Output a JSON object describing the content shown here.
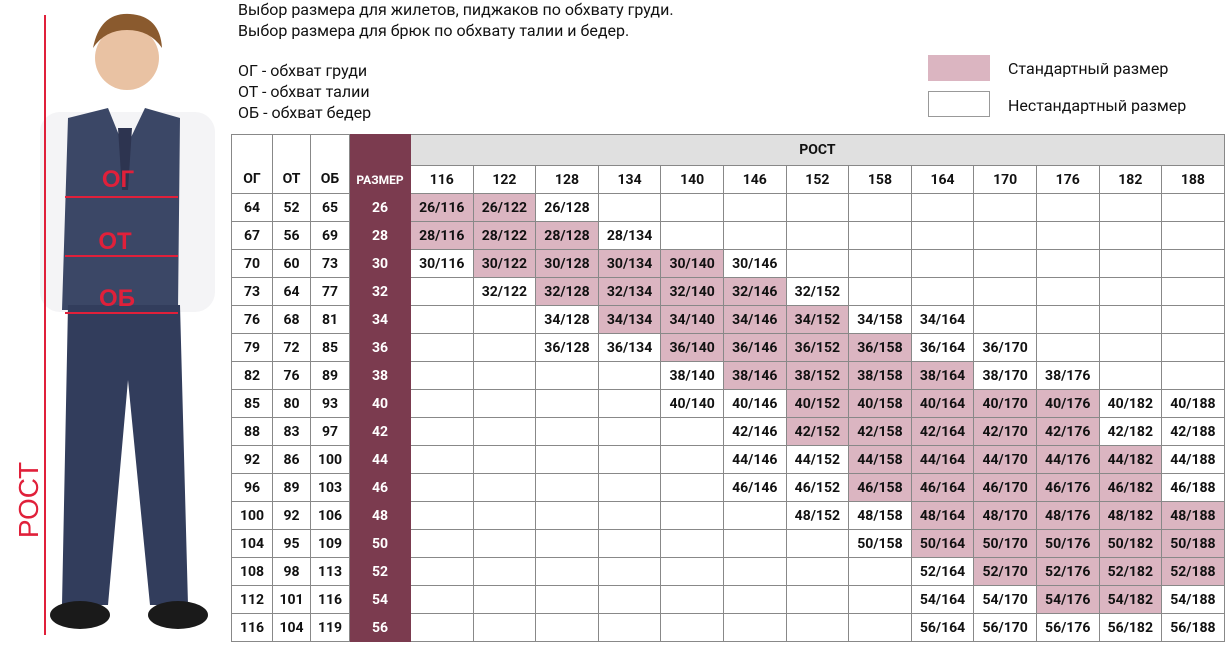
{
  "header": {
    "lines": [
      "Выбор размера для жилетов, пиджаков по обхвату груди.",
      "Выбор размера для брюк по обхвату талии и бедер."
    ],
    "abbreviations": [
      "ОГ - обхват груди",
      "ОТ - обхват талии",
      "ОБ - обхват бедер"
    ]
  },
  "legend": {
    "standard": "Стандартный размер",
    "nonstandard": "Нестандартный размер"
  },
  "figure": {
    "chest": "ОГ",
    "waist": "ОТ",
    "hips": "ОБ",
    "height": "РОСТ"
  },
  "table": {
    "height_title": "РОСТ",
    "columns": [
      "ОГ",
      "ОТ",
      "ОБ",
      "РАЗМЕР"
    ],
    "heights": [
      "116",
      "122",
      "128",
      "134",
      "140",
      "146",
      "152",
      "158",
      "164",
      "170",
      "176",
      "182",
      "188"
    ],
    "rows": [
      {
        "og": "64",
        "ot": "52",
        "ob": "65",
        "size": "26",
        "cells": [
          {
            "text": "26/116",
            "standard": true
          },
          {
            "text": "26/122",
            "standard": true
          },
          {
            "text": "26/128",
            "standard": false
          },
          null,
          null,
          null,
          null,
          null,
          null,
          null,
          null,
          null,
          null
        ]
      },
      {
        "og": "67",
        "ot": "56",
        "ob": "69",
        "size": "28",
        "cells": [
          {
            "text": "28/116",
            "standard": true
          },
          {
            "text": "28/122",
            "standard": true
          },
          {
            "text": "28/128",
            "standard": true
          },
          {
            "text": "28/134",
            "standard": false
          },
          null,
          null,
          null,
          null,
          null,
          null,
          null,
          null,
          null
        ]
      },
      {
        "og": "70",
        "ot": "60",
        "ob": "73",
        "size": "30",
        "cells": [
          {
            "text": "30/116",
            "standard": false
          },
          {
            "text": "30/122",
            "standard": true
          },
          {
            "text": "30/128",
            "standard": true
          },
          {
            "text": "30/134",
            "standard": true
          },
          {
            "text": "30/140",
            "standard": true
          },
          {
            "text": "30/146",
            "standard": false
          },
          null,
          null,
          null,
          null,
          null,
          null,
          null
        ]
      },
      {
        "og": "73",
        "ot": "64",
        "ob": "77",
        "size": "32",
        "cells": [
          null,
          {
            "text": "32/122",
            "standard": false
          },
          {
            "text": "32/128",
            "standard": true
          },
          {
            "text": "32/134",
            "standard": true
          },
          {
            "text": "32/140",
            "standard": true
          },
          {
            "text": "32/146",
            "standard": true
          },
          {
            "text": "32/152",
            "standard": false
          },
          null,
          null,
          null,
          null,
          null,
          null
        ]
      },
      {
        "og": "76",
        "ot": "68",
        "ob": "81",
        "size": "34",
        "cells": [
          null,
          null,
          {
            "text": "34/128",
            "standard": false
          },
          {
            "text": "34/134",
            "standard": true
          },
          {
            "text": "34/140",
            "standard": true
          },
          {
            "text": "34/146",
            "standard": true
          },
          {
            "text": "34/152",
            "standard": true
          },
          {
            "text": "34/158",
            "standard": false
          },
          {
            "text": "34/164",
            "standard": false
          },
          null,
          null,
          null,
          null
        ]
      },
      {
        "og": "79",
        "ot": "72",
        "ob": "85",
        "size": "36",
        "cells": [
          null,
          null,
          {
            "text": "36/128",
            "standard": false
          },
          {
            "text": "36/134",
            "standard": false
          },
          {
            "text": "36/140",
            "standard": true
          },
          {
            "text": "36/146",
            "standard": true
          },
          {
            "text": "36/152",
            "standard": true
          },
          {
            "text": "36/158",
            "standard": true
          },
          {
            "text": "36/164",
            "standard": false
          },
          {
            "text": "36/170",
            "standard": false
          },
          null,
          null,
          null
        ]
      },
      {
        "og": "82",
        "ot": "76",
        "ob": "89",
        "size": "38",
        "cells": [
          null,
          null,
          null,
          null,
          {
            "text": "38/140",
            "standard": false
          },
          {
            "text": "38/146",
            "standard": true
          },
          {
            "text": "38/152",
            "standard": true
          },
          {
            "text": "38/158",
            "standard": true
          },
          {
            "text": "38/164",
            "standard": true
          },
          {
            "text": "38/170",
            "standard": false
          },
          {
            "text": "38/176",
            "standard": false
          },
          null,
          null
        ]
      },
      {
        "og": "85",
        "ot": "80",
        "ob": "93",
        "size": "40",
        "cells": [
          null,
          null,
          null,
          null,
          {
            "text": "40/140",
            "standard": false
          },
          {
            "text": "40/146",
            "standard": false
          },
          {
            "text": "40/152",
            "standard": true
          },
          {
            "text": "40/158",
            "standard": true
          },
          {
            "text": "40/164",
            "standard": true
          },
          {
            "text": "40/170",
            "standard": true
          },
          {
            "text": "40/176",
            "standard": true
          },
          {
            "text": "40/182",
            "standard": false
          },
          {
            "text": "40/188",
            "standard": false
          }
        ]
      },
      {
        "og": "88",
        "ot": "83",
        "ob": "97",
        "size": "42",
        "cells": [
          null,
          null,
          null,
          null,
          null,
          {
            "text": "42/146",
            "standard": false
          },
          {
            "text": "42/152",
            "standard": true
          },
          {
            "text": "42/158",
            "standard": true
          },
          {
            "text": "42/164",
            "standard": true
          },
          {
            "text": "42/170",
            "standard": true
          },
          {
            "text": "42/176",
            "standard": true
          },
          {
            "text": "42/182",
            "standard": false
          },
          {
            "text": "42/188",
            "standard": false
          }
        ]
      },
      {
        "og": "92",
        "ot": "86",
        "ob": "100",
        "size": "44",
        "cells": [
          null,
          null,
          null,
          null,
          null,
          {
            "text": "44/146",
            "standard": false
          },
          {
            "text": "44/152",
            "standard": false
          },
          {
            "text": "44/158",
            "standard": true
          },
          {
            "text": "44/164",
            "standard": true
          },
          {
            "text": "44/170",
            "standard": true
          },
          {
            "text": "44/176",
            "standard": true
          },
          {
            "text": "44/182",
            "standard": true
          },
          {
            "text": "44/188",
            "standard": false
          }
        ]
      },
      {
        "og": "96",
        "ot": "89",
        "ob": "103",
        "size": "46",
        "cells": [
          null,
          null,
          null,
          null,
          null,
          {
            "text": "46/146",
            "standard": false
          },
          {
            "text": "46/152",
            "standard": false
          },
          {
            "text": "46/158",
            "standard": true
          },
          {
            "text": "46/164",
            "standard": true
          },
          {
            "text": "46/170",
            "standard": true
          },
          {
            "text": "46/176",
            "standard": true
          },
          {
            "text": "46/182",
            "standard": true
          },
          {
            "text": "46/188",
            "standard": false
          }
        ]
      },
      {
        "og": "100",
        "ot": "92",
        "ob": "106",
        "size": "48",
        "cells": [
          null,
          null,
          null,
          null,
          null,
          null,
          {
            "text": "48/152",
            "standard": false
          },
          {
            "text": "48/158",
            "standard": false
          },
          {
            "text": "48/164",
            "standard": true
          },
          {
            "text": "48/170",
            "standard": true
          },
          {
            "text": "48/176",
            "standard": true
          },
          {
            "text": "48/182",
            "standard": true
          },
          {
            "text": "48/188",
            "standard": true
          }
        ]
      },
      {
        "og": "104",
        "ot": "95",
        "ob": "109",
        "size": "50",
        "cells": [
          null,
          null,
          null,
          null,
          null,
          null,
          null,
          {
            "text": "50/158",
            "standard": false
          },
          {
            "text": "50/164",
            "standard": true
          },
          {
            "text": "50/170",
            "standard": true
          },
          {
            "text": "50/176",
            "standard": true
          },
          {
            "text": "50/182",
            "standard": true
          },
          {
            "text": "50/188",
            "standard": true
          }
        ]
      },
      {
        "og": "108",
        "ot": "98",
        "ob": "113",
        "size": "52",
        "cells": [
          null,
          null,
          null,
          null,
          null,
          null,
          null,
          null,
          {
            "text": "52/164",
            "standard": false
          },
          {
            "text": "52/170",
            "standard": true
          },
          {
            "text": "52/176",
            "standard": true
          },
          {
            "text": "52/182",
            "standard": true
          },
          {
            "text": "52/188",
            "standard": true
          }
        ]
      },
      {
        "og": "112",
        "ot": "101",
        "ob": "116",
        "size": "54",
        "cells": [
          null,
          null,
          null,
          null,
          null,
          null,
          null,
          null,
          {
            "text": "54/164",
            "standard": false
          },
          {
            "text": "54/170",
            "standard": false
          },
          {
            "text": "54/176",
            "standard": true
          },
          {
            "text": "54/182",
            "standard": true
          },
          {
            "text": "54/188",
            "standard": false
          }
        ]
      },
      {
        "og": "116",
        "ot": "104",
        "ob": "119",
        "size": "56",
        "cells": [
          null,
          null,
          null,
          null,
          null,
          null,
          null,
          null,
          {
            "text": "56/164",
            "standard": false
          },
          {
            "text": "56/170",
            "standard": false
          },
          {
            "text": "56/176",
            "standard": false
          },
          {
            "text": "56/182",
            "standard": false
          },
          {
            "text": "56/188",
            "standard": false
          }
        ]
      }
    ]
  }
}
